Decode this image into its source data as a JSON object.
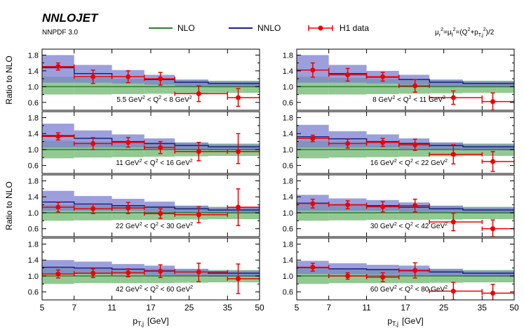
{
  "header": {
    "title": "NNLOJET",
    "pdf": "NNPDF 3.0",
    "scale": "μr²=μf²=(Q²+pT,j²)/2"
  },
  "legend": {
    "nlo": "NLO",
    "nnlo": "NNLO",
    "data": "H1 data"
  },
  "colors": {
    "nlo_band": "#7fbf7f",
    "nlo_line": "#2e7d32",
    "nnlo_band": "#7b7fd0",
    "nnlo_line": "#1a237e",
    "data": "#ee0000"
  },
  "chart_data": {
    "type": "histogram-ratio",
    "ylabel": "Ratio to NLO",
    "xlabel_main": "p",
    "xlabel_sub": "T,j",
    "xlabel_unit": "[GeV]",
    "x_bin_edges": [
      5,
      7,
      11,
      16,
      22,
      30,
      42,
      50
    ],
    "x_ticks": [
      5,
      7,
      11,
      17,
      25,
      35,
      50
    ],
    "y_ticks": [
      0.6,
      1.0,
      1.4,
      1.8
    ],
    "y_tick_labels": [
      "0.6",
      "1.0",
      "1.4",
      "1.8"
    ],
    "y_minor_ticks": [
      0.8,
      1.2,
      1.6
    ],
    "ylim": [
      0.4,
      1.95
    ],
    "panels": [
      {
        "label": "5.5 GeV² < Q² < 8 GeV²",
        "nlo_band": [
          [
            0.8,
            1.25
          ],
          [
            0.8,
            1.22
          ],
          [
            0.81,
            1.2
          ],
          [
            0.82,
            1.18
          ],
          [
            0.83,
            1.17
          ],
          [
            0.84,
            1.15
          ],
          [
            0.84,
            1.15
          ]
        ],
        "nnlo_central": [
          1.48,
          1.33,
          1.25,
          1.18,
          1.11,
          1.08,
          1.08
        ],
        "nnlo_band": [
          [
            1.1,
            1.8
          ],
          [
            1.1,
            1.55
          ],
          [
            1.08,
            1.42
          ],
          [
            1.05,
            1.3
          ],
          [
            1.0,
            1.18
          ],
          [
            0.98,
            1.13
          ],
          [
            0.98,
            1.13
          ]
        ],
        "data_x": [
          6.0,
          9.0,
          13.5,
          19.0,
          27.5,
          40.0
        ],
        "data_xerr": [
          [
            5,
            7
          ],
          [
            7,
            11
          ],
          [
            11,
            16
          ],
          [
            16,
            22
          ],
          [
            22,
            35
          ],
          [
            35,
            50
          ]
        ],
        "data_y": [
          1.51,
          1.25,
          1.25,
          1.2,
          0.82,
          0.72
        ],
        "data_yerr": [
          [
            1.42,
            1.6
          ],
          [
            1.08,
            1.42
          ],
          [
            1.1,
            1.4
          ],
          [
            1.04,
            1.36
          ],
          [
            0.62,
            1.02
          ],
          [
            0.5,
            0.95
          ]
        ]
      },
      {
        "label": "8 GeV² < Q² < 11 GeV²",
        "nlo_band": [
          [
            0.8,
            1.25
          ],
          [
            0.8,
            1.22
          ],
          [
            0.81,
            1.2
          ],
          [
            0.82,
            1.18
          ],
          [
            0.83,
            1.17
          ],
          [
            0.84,
            1.15
          ],
          [
            0.84,
            1.15
          ]
        ],
        "nnlo_central": [
          1.42,
          1.33,
          1.24,
          1.18,
          1.11,
          1.08,
          1.08
        ],
        "nnlo_band": [
          [
            1.1,
            1.8
          ],
          [
            1.1,
            1.55
          ],
          [
            1.08,
            1.4
          ],
          [
            1.05,
            1.3
          ],
          [
            1.0,
            1.18
          ],
          [
            0.98,
            1.13
          ],
          [
            0.98,
            1.13
          ]
        ],
        "data_x": [
          6.0,
          9.0,
          13.5,
          19.0,
          27.5,
          40.0
        ],
        "data_xerr": [
          [
            5,
            7
          ],
          [
            7,
            11
          ],
          [
            11,
            16
          ],
          [
            16,
            22
          ],
          [
            22,
            35
          ],
          [
            35,
            50
          ]
        ],
        "data_y": [
          1.42,
          1.3,
          1.25,
          1.02,
          0.72,
          0.62
        ],
        "data_yerr": [
          [
            1.24,
            1.6
          ],
          [
            1.14,
            1.46
          ],
          [
            1.14,
            1.36
          ],
          [
            0.86,
            1.18
          ],
          [
            0.55,
            0.89
          ],
          [
            0.4,
            0.84
          ]
        ]
      },
      {
        "label": "11 GeV² < Q² < 16 GeV²",
        "nlo_band": [
          [
            0.78,
            1.22
          ],
          [
            0.8,
            1.2
          ],
          [
            0.81,
            1.19
          ],
          [
            0.82,
            1.18
          ],
          [
            0.83,
            1.17
          ],
          [
            0.84,
            1.15
          ],
          [
            0.84,
            1.15
          ]
        ],
        "nnlo_central": [
          1.35,
          1.28,
          1.2,
          1.15,
          1.1,
          1.07,
          1.07
        ],
        "nnlo_band": [
          [
            1.05,
            1.65
          ],
          [
            1.05,
            1.48
          ],
          [
            1.05,
            1.38
          ],
          [
            1.02,
            1.28
          ],
          [
            1.0,
            1.18
          ],
          [
            0.98,
            1.13
          ],
          [
            0.98,
            1.13
          ]
        ],
        "data_x": [
          6.0,
          9.0,
          13.5,
          19.0,
          27.5,
          40.0
        ],
        "data_xerr": [
          [
            5,
            7
          ],
          [
            7,
            11
          ],
          [
            11,
            16
          ],
          [
            16,
            22
          ],
          [
            22,
            35
          ],
          [
            35,
            50
          ]
        ],
        "data_y": [
          1.33,
          1.15,
          1.18,
          1.05,
          0.95,
          0.95
        ],
        "data_yerr": [
          [
            1.24,
            1.42
          ],
          [
            1.0,
            1.3
          ],
          [
            1.06,
            1.3
          ],
          [
            0.9,
            1.2
          ],
          [
            0.72,
            1.18
          ],
          [
            0.65,
            1.4
          ]
        ]
      },
      {
        "label": "16 GeV² < Q² < 22 GeV²",
        "nlo_band": [
          [
            0.78,
            1.22
          ],
          [
            0.8,
            1.2
          ],
          [
            0.81,
            1.19
          ],
          [
            0.82,
            1.18
          ],
          [
            0.83,
            1.17
          ],
          [
            0.84,
            1.15
          ],
          [
            0.84,
            1.15
          ]
        ],
        "nnlo_central": [
          1.32,
          1.27,
          1.2,
          1.15,
          1.1,
          1.07,
          1.07
        ],
        "nnlo_band": [
          [
            1.05,
            1.62
          ],
          [
            1.05,
            1.46
          ],
          [
            1.05,
            1.38
          ],
          [
            1.02,
            1.28
          ],
          [
            1.0,
            1.18
          ],
          [
            0.98,
            1.13
          ],
          [
            0.98,
            1.13
          ]
        ],
        "data_x": [
          6.0,
          9.0,
          13.5,
          19.0,
          27.5,
          40.0
        ],
        "data_xerr": [
          [
            5,
            7
          ],
          [
            7,
            11
          ],
          [
            11,
            16
          ],
          [
            16,
            22
          ],
          [
            22,
            35
          ],
          [
            35,
            50
          ]
        ],
        "data_y": [
          1.28,
          1.15,
          1.18,
          1.12,
          0.88,
          0.7
        ],
        "data_yerr": [
          [
            1.2,
            1.36
          ],
          [
            1.04,
            1.26
          ],
          [
            1.08,
            1.28
          ],
          [
            0.98,
            1.26
          ],
          [
            0.64,
            1.12
          ],
          [
            0.45,
            0.95
          ]
        ]
      },
      {
        "label": "22 GeV² < Q² < 30 GeV²",
        "nlo_band": [
          [
            0.8,
            1.2
          ],
          [
            0.81,
            1.19
          ],
          [
            0.82,
            1.18
          ],
          [
            0.82,
            1.18
          ],
          [
            0.83,
            1.17
          ],
          [
            0.84,
            1.15
          ],
          [
            0.84,
            1.15
          ]
        ],
        "nnlo_central": [
          1.27,
          1.22,
          1.18,
          1.14,
          1.1,
          1.07,
          1.07
        ],
        "nnlo_band": [
          [
            1.05,
            1.55
          ],
          [
            1.05,
            1.42
          ],
          [
            1.05,
            1.35
          ],
          [
            1.02,
            1.28
          ],
          [
            1.0,
            1.18
          ],
          [
            0.98,
            1.13
          ],
          [
            0.98,
            1.13
          ]
        ],
        "data_x": [
          6.0,
          9.0,
          13.5,
          19.0,
          27.5,
          40.0
        ],
        "data_xerr": [
          [
            5,
            7
          ],
          [
            7,
            11
          ],
          [
            11,
            16
          ],
          [
            16,
            22
          ],
          [
            22,
            35
          ],
          [
            35,
            50
          ]
        ],
        "data_y": [
          1.14,
          1.1,
          1.12,
          0.98,
          0.95,
          1.14
        ],
        "data_yerr": [
          [
            1.02,
            1.26
          ],
          [
            0.98,
            1.22
          ],
          [
            0.98,
            1.26
          ],
          [
            0.86,
            1.1
          ],
          [
            0.75,
            1.15
          ],
          [
            0.68,
            1.6
          ]
        ]
      },
      {
        "label": "30 GeV² < Q² < 42 GeV²",
        "nlo_band": [
          [
            0.8,
            1.2
          ],
          [
            0.81,
            1.19
          ],
          [
            0.82,
            1.18
          ],
          [
            0.82,
            1.18
          ],
          [
            0.83,
            1.17
          ],
          [
            0.84,
            1.15
          ],
          [
            0.84,
            1.15
          ]
        ],
        "nnlo_central": [
          1.24,
          1.2,
          1.18,
          1.14,
          1.1,
          1.07,
          1.07
        ],
        "nnlo_band": [
          [
            1.05,
            1.45
          ],
          [
            1.05,
            1.36
          ],
          [
            1.05,
            1.32
          ],
          [
            1.02,
            1.26
          ],
          [
            1.0,
            1.18
          ],
          [
            0.98,
            1.13
          ],
          [
            0.98,
            1.13
          ]
        ],
        "data_x": [
          6.0,
          9.0,
          13.5,
          19.0,
          27.5,
          40.0
        ],
        "data_xerr": [
          [
            5,
            7
          ],
          [
            7,
            11
          ],
          [
            11,
            16
          ],
          [
            16,
            22
          ],
          [
            22,
            35
          ],
          [
            35,
            50
          ]
        ],
        "data_y": [
          1.23,
          1.2,
          1.15,
          1.18,
          0.77,
          0.6
        ],
        "data_yerr": [
          [
            1.12,
            1.34
          ],
          [
            1.1,
            1.3
          ],
          [
            1.02,
            1.28
          ],
          [
            1.02,
            1.34
          ],
          [
            0.55,
            0.99
          ],
          [
            0.4,
            0.82
          ]
        ]
      },
      {
        "label": "42 GeV² < Q² < 60 GeV²",
        "nlo_band": [
          [
            0.8,
            1.2
          ],
          [
            0.82,
            1.18
          ],
          [
            0.82,
            1.18
          ],
          [
            0.82,
            1.18
          ],
          [
            0.83,
            1.17
          ],
          [
            0.84,
            1.15
          ],
          [
            0.84,
            1.15
          ]
        ],
        "nnlo_central": [
          1.22,
          1.2,
          1.17,
          1.13,
          1.1,
          1.07,
          1.07
        ],
        "nnlo_band": [
          [
            1.05,
            1.4
          ],
          [
            1.05,
            1.36
          ],
          [
            1.04,
            1.3
          ],
          [
            1.02,
            1.26
          ],
          [
            1.0,
            1.18
          ],
          [
            0.98,
            1.13
          ],
          [
            0.98,
            1.13
          ]
        ],
        "data_x": [
          6.0,
          9.0,
          13.5,
          19.0,
          27.5,
          40.0
        ],
        "data_xerr": [
          [
            5,
            7
          ],
          [
            7,
            11
          ],
          [
            11,
            16
          ],
          [
            16,
            22
          ],
          [
            22,
            35
          ],
          [
            35,
            50
          ]
        ],
        "data_y": [
          1.05,
          1.07,
          1.08,
          1.12,
          1.1,
          0.93
        ],
        "data_yerr": [
          [
            0.95,
            1.15
          ],
          [
            0.96,
            1.18
          ],
          [
            0.98,
            1.18
          ],
          [
            0.96,
            1.28
          ],
          [
            0.86,
            1.32
          ],
          [
            0.56,
            1.3
          ]
        ]
      },
      {
        "label": "60 GeV² < Q² < 80 GeV²",
        "nlo_band": [
          [
            0.8,
            1.2
          ],
          [
            0.82,
            1.18
          ],
          [
            0.82,
            1.18
          ],
          [
            0.82,
            1.18
          ],
          [
            0.83,
            1.17
          ],
          [
            0.84,
            1.15
          ],
          [
            0.84,
            1.15
          ]
        ],
        "nnlo_central": [
          1.21,
          1.18,
          1.16,
          1.13,
          1.1,
          1.07,
          1.07
        ],
        "nnlo_band": [
          [
            1.05,
            1.38
          ],
          [
            1.04,
            1.32
          ],
          [
            1.03,
            1.28
          ],
          [
            1.02,
            1.26
          ],
          [
            1.0,
            1.18
          ],
          [
            0.98,
            1.13
          ],
          [
            0.98,
            1.13
          ]
        ],
        "data_x": [
          6.0,
          9.0,
          13.5,
          19.0,
          27.5,
          40.0
        ],
        "data_xerr": [
          [
            5,
            7
          ],
          [
            7,
            11
          ],
          [
            11,
            16
          ],
          [
            16,
            22
          ],
          [
            22,
            35
          ],
          [
            35,
            50
          ]
        ],
        "data_y": [
          1.22,
          1.0,
          0.97,
          1.14,
          0.62,
          0.57
        ],
        "data_yerr": [
          [
            1.12,
            1.32
          ],
          [
            0.92,
            1.08
          ],
          [
            0.86,
            1.08
          ],
          [
            0.95,
            1.33
          ],
          [
            0.4,
            0.84
          ],
          [
            0.35,
            0.79
          ]
        ]
      }
    ]
  }
}
